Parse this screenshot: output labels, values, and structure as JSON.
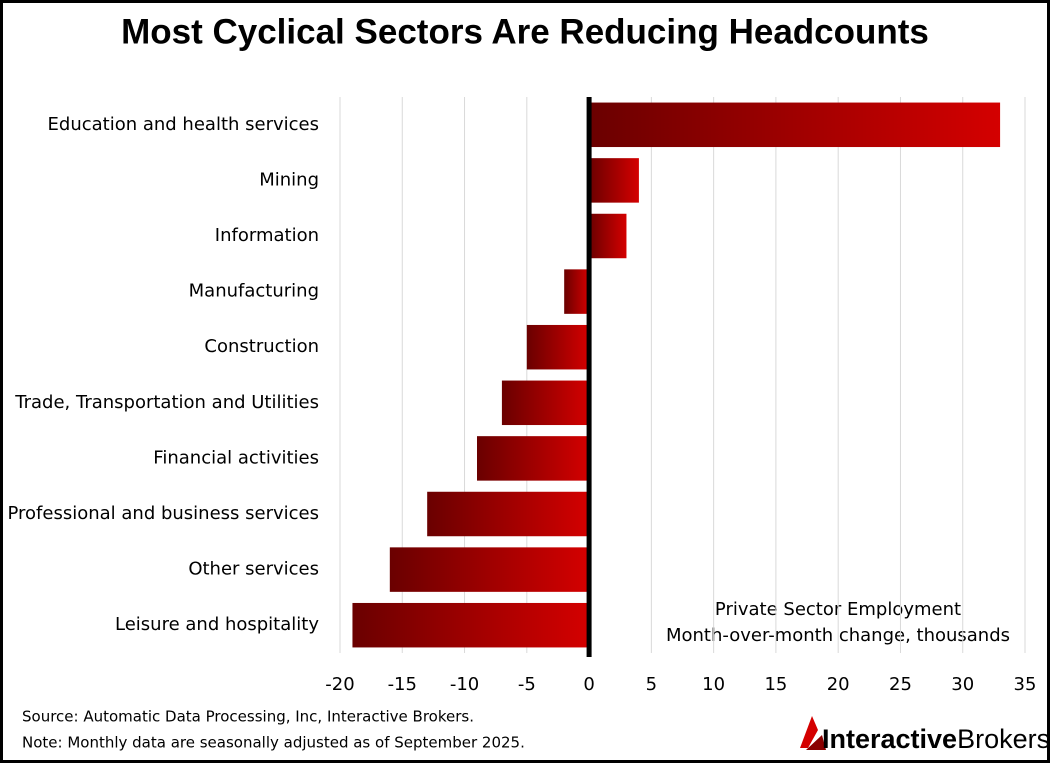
{
  "chart_data": {
    "type": "barh",
    "title": "Most Cyclical Sectors Are Reducing Headcounts",
    "categories": [
      "Education and health services",
      "Mining",
      "Information",
      "Manufacturing",
      "Construction",
      "Trade, Transportation and Utilities",
      "Financial activities",
      "Professional and business services",
      "Other services",
      "Leisure and hospitality"
    ],
    "values": [
      33,
      4,
      3,
      -2,
      -5,
      -7,
      -9,
      -13,
      -16,
      -19
    ],
    "color": "#d40000",
    "xlim": [
      -20,
      35
    ],
    "xticks": [
      -20,
      -15,
      -10,
      -5,
      0,
      5,
      10,
      15,
      20,
      25,
      30,
      35
    ],
    "grid": true,
    "annotations": [
      "Private Sector Employment",
      "Month-over-month change, thousands"
    ],
    "source": "Source: Automatic Data Processing, Inc, Interactive Brokers.",
    "note": "Note: Monthly data are seasonally adjusted as of September 2025.",
    "logo": [
      "Interactive",
      "Brokers"
    ]
  }
}
